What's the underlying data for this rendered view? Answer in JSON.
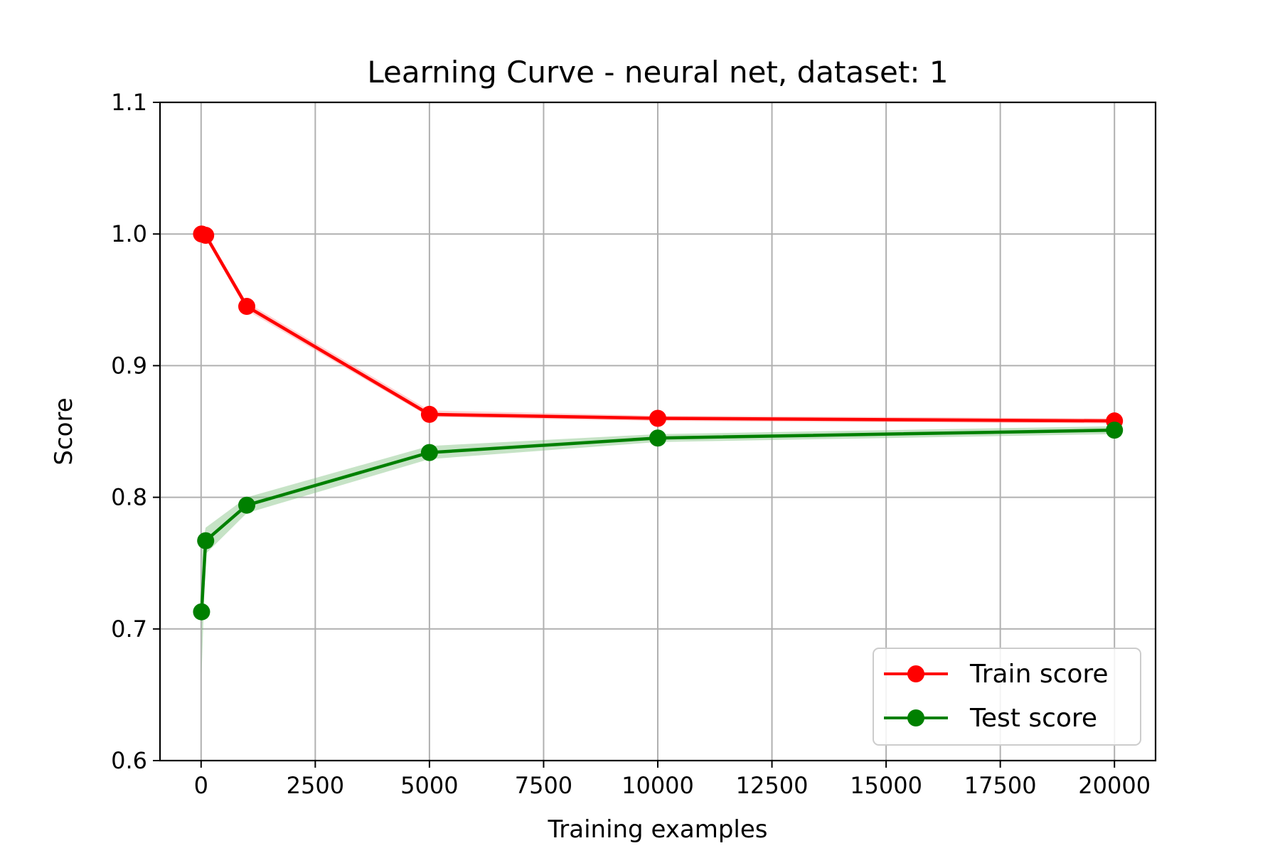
{
  "chart_data": {
    "type": "line",
    "title": "Learning Curve - neural net, dataset: 1",
    "xlabel": "Training examples",
    "ylabel": "Score",
    "xlim": [
      -900,
      20900
    ],
    "ylim": [
      0.6,
      1.1
    ],
    "xticks": [
      0,
      2500,
      5000,
      7500,
      10000,
      12500,
      15000,
      17500,
      20000
    ],
    "xtick_labels": [
      "0",
      "2500",
      "5000",
      "7500",
      "10000",
      "12500",
      "15000",
      "17500",
      "20000"
    ],
    "yticks": [
      0.6,
      0.7,
      0.8,
      0.9,
      1.0,
      1.1
    ],
    "ytick_labels": [
      "0.6",
      "0.7",
      "0.8",
      "0.9",
      "1.0",
      "1.1"
    ],
    "grid": true,
    "legend_position": "lower-right",
    "x": [
      10,
      100,
      1000,
      5000,
      10000,
      20000
    ],
    "series": [
      {
        "name": "Train score",
        "color": "#ff0000",
        "band_color": "#ff9999",
        "values": [
          1.0,
          0.999,
          0.945,
          0.863,
          0.86,
          0.858
        ],
        "band_lower": [
          1.0,
          0.997,
          0.942,
          0.861,
          0.858,
          0.856
        ],
        "band_upper": [
          1.0,
          1.001,
          0.948,
          0.866,
          0.862,
          0.86
        ]
      },
      {
        "name": "Test score",
        "color": "#008000",
        "band_color": "#80c080",
        "values": [
          0.713,
          0.767,
          0.794,
          0.834,
          0.845,
          0.851
        ],
        "band_lower": [
          0.665,
          0.757,
          0.788,
          0.829,
          0.842,
          0.848
        ],
        "band_upper": [
          0.761,
          0.777,
          0.8,
          0.839,
          0.848,
          0.854
        ]
      }
    ]
  }
}
